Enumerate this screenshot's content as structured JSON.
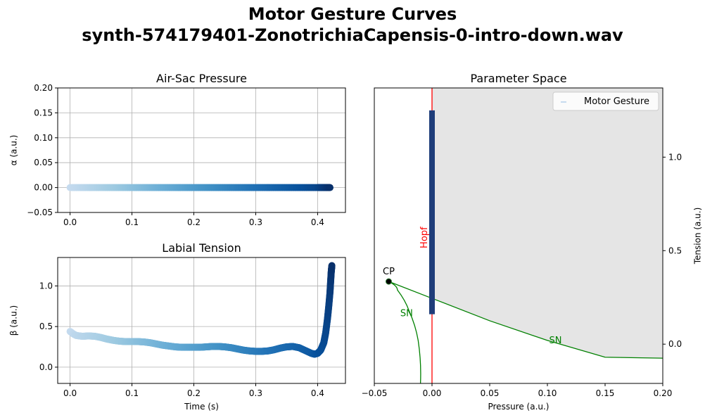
{
  "figure": {
    "title_line1": "Motor Gesture Curves",
    "title_line2": "synth-574179401-ZonotrichiaCapensis-0-intro-down.wav"
  },
  "chart_data": [
    {
      "type": "scatter",
      "title": "Air-Sac Pressure",
      "xlabel": "",
      "ylabel": "α (a.u.)",
      "xlim": [
        -0.02,
        0.445
      ],
      "ylim": [
        -0.05,
        0.2
      ],
      "xticks": [
        "0.0",
        "0.1",
        "0.2",
        "0.3",
        "0.4"
      ],
      "xtick_values": [
        0,
        0.1,
        0.2,
        0.3,
        0.4
      ],
      "yticks": [
        "−0.05",
        "0.00",
        "0.05",
        "0.10",
        "0.15",
        "0.20"
      ],
      "ytick_values": [
        -0.05,
        0,
        0.05,
        0.1,
        0.15,
        0.2
      ],
      "grid": true,
      "colormap": "Blues",
      "colors": [
        "#c6dbef",
        "#9ecae1",
        "#6baed6",
        "#4292c6",
        "#2171b5",
        "#08519c",
        "#08306b"
      ],
      "series": [
        {
          "x": [
            0,
            0.05,
            0.1,
            0.15,
            0.2,
            0.25,
            0.3,
            0.35,
            0.4,
            0.42
          ],
          "y": [
            0,
            0,
            0,
            0,
            0,
            0,
            0,
            0,
            0,
            0
          ]
        }
      ]
    },
    {
      "type": "scatter",
      "title": "Labial Tension",
      "xlabel": "Time (s)",
      "ylabel": "β (a.u.)",
      "xlim": [
        -0.02,
        0.445
      ],
      "ylim": [
        -0.2,
        1.35
      ],
      "xticks": [
        "0.0",
        "0.1",
        "0.2",
        "0.3",
        "0.4"
      ],
      "xtick_values": [
        0,
        0.1,
        0.2,
        0.3,
        0.4
      ],
      "yticks": [
        "0.0",
        "0.5",
        "1.0"
      ],
      "ytick_values": [
        0,
        0.5,
        1.0
      ],
      "grid": true,
      "colormap": "Blues",
      "series": [
        {
          "x": [
            0,
            0.005,
            0.01,
            0.02,
            0.03,
            0.04,
            0.05,
            0.06,
            0.07,
            0.08,
            0.09,
            0.1,
            0.11,
            0.12,
            0.13,
            0.14,
            0.15,
            0.16,
            0.17,
            0.18,
            0.19,
            0.2,
            0.21,
            0.22,
            0.23,
            0.24,
            0.25,
            0.26,
            0.27,
            0.28,
            0.29,
            0.3,
            0.31,
            0.32,
            0.33,
            0.34,
            0.35,
            0.36,
            0.37,
            0.38,
            0.39,
            0.395,
            0.4,
            0.405,
            0.41,
            0.413,
            0.416,
            0.418,
            0.42,
            0.421,
            0.422,
            0.423
          ],
          "y": [
            0.44,
            0.41,
            0.39,
            0.38,
            0.385,
            0.38,
            0.365,
            0.345,
            0.33,
            0.32,
            0.315,
            0.315,
            0.315,
            0.31,
            0.3,
            0.285,
            0.27,
            0.26,
            0.25,
            0.245,
            0.245,
            0.245,
            0.245,
            0.25,
            0.255,
            0.255,
            0.25,
            0.24,
            0.225,
            0.21,
            0.2,
            0.195,
            0.195,
            0.2,
            0.215,
            0.235,
            0.25,
            0.255,
            0.24,
            0.205,
            0.17,
            0.16,
            0.17,
            0.21,
            0.3,
            0.42,
            0.6,
            0.75,
            0.92,
            1.05,
            1.17,
            1.25
          ]
        }
      ]
    },
    {
      "type": "line",
      "title": "Parameter Space",
      "xlabel": "Pressure (a.u.)",
      "ylabel": "Tension (a.u.)",
      "xlim": [
        -0.05,
        0.2
      ],
      "ylim": [
        -0.21,
        1.37
      ],
      "xticks": [
        "−0.05",
        "0.00",
        "0.05",
        "0.10",
        "0.15",
        "0.20"
      ],
      "xtick_values": [
        -0.05,
        0,
        0.05,
        0.1,
        0.15,
        0.2
      ],
      "yticks": [
        "0.0",
        "0.5",
        "1.0"
      ],
      "ytick_values": [
        0,
        0.5,
        1.0
      ],
      "y_axis_side": "right",
      "grid": false,
      "legend": {
        "position": "top-right",
        "entries": [
          "Motor Gesture"
        ]
      },
      "annotations": {
        "hopf": "Hopf",
        "cp": "CP",
        "sn1": "SN",
        "sn2": "SN"
      },
      "colors": {
        "hopf": "#ff0000",
        "sn": "#008000",
        "region": "#e5e5e5",
        "gesture": "#1f3d7a",
        "legend_marker": "#c6dbef"
      },
      "hopf_x": 0.0,
      "cusp_point": [
        -0.0375,
        0.335
      ],
      "sn_upper": {
        "x": [
          -0.0375,
          0.0,
          0.05,
          0.1,
          0.15,
          0.2
        ],
        "y": [
          0.335,
          0.245,
          0.125,
          0.02,
          -0.07,
          -0.075
        ]
      },
      "sn_lower": {
        "x": [
          -0.0375,
          -0.03,
          -0.02,
          -0.012,
          -0.01
        ],
        "y": [
          0.335,
          0.29,
          0.18,
          0.02,
          -0.21
        ]
      },
      "motor_gesture": {
        "x": [
          0.0,
          0.0,
          0.0,
          0.0
        ],
        "y": [
          0.16,
          0.6,
          1.0,
          1.25
        ]
      }
    }
  ]
}
